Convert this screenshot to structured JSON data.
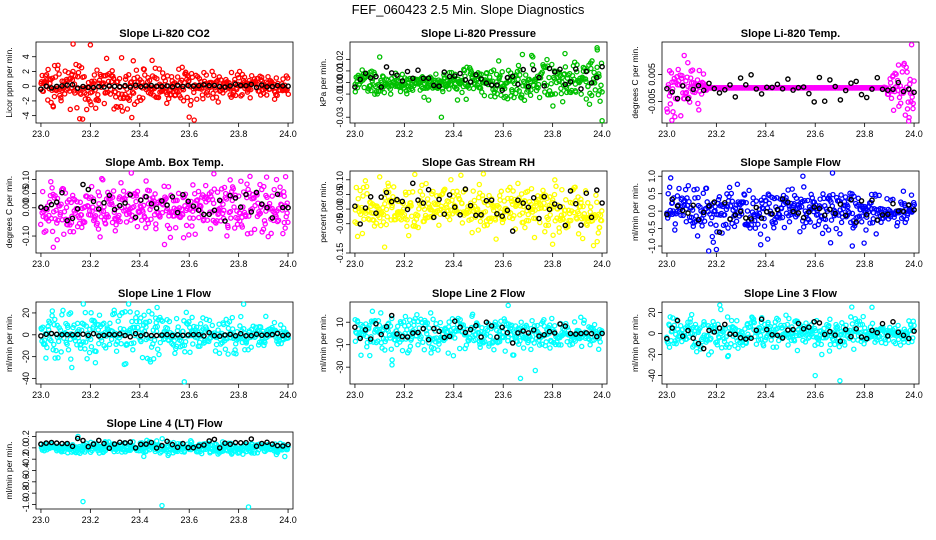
{
  "title": "FEF_060423  2.5 Min. Slope Diagnostics",
  "chart_data": [
    {
      "id": "co2",
      "type": "scatter",
      "title": "Slope Li-820 CO2",
      "ylabel": "Licor ppm per min.",
      "xlim": [
        22.98,
        24.02
      ],
      "ylim": [
        -5,
        6
      ],
      "xticks": [
        "23.0",
        "23.2",
        "23.4",
        "23.6",
        "23.8",
        "24.0"
      ],
      "yticks": [
        -4,
        -2,
        0,
        2,
        4
      ],
      "ytick_labels": [
        "-4",
        "-2",
        "0",
        "2",
        "4"
      ],
      "color": "#ff0000",
      "sd": 1.2,
      "spread": [
        [
          23.0,
          1
        ],
        [
          23.2,
          1.6
        ],
        [
          23.45,
          1.3
        ],
        [
          23.6,
          0.9
        ],
        [
          24.0,
          0.5
        ]
      ],
      "outliers": [
        [
          23.13,
          5.8
        ],
        [
          23.2,
          5.6
        ],
        [
          23.6,
          -4.2
        ],
        [
          23.62,
          -4.6
        ],
        [
          23.05,
          -2.8
        ],
        [
          23.35,
          -3.1
        ],
        [
          23.45,
          3.5
        ]
      ],
      "black_sd": 0.15,
      "black_offset": 0
    },
    {
      "id": "pressure",
      "type": "scatter",
      "title": "Slope Li-820 Pressure",
      "ylabel": "kPa per min.",
      "xlim": [
        22.98,
        24.02
      ],
      "ylim": [
        -0.035,
        0.035
      ],
      "xticks": [
        "23.0",
        "23.2",
        "23.4",
        "23.6",
        "23.8",
        "24.0"
      ],
      "yticks": [
        -0.03,
        -0.01,
        0.0,
        0.01,
        0.02
      ],
      "ytick_labels": [
        "-0.03",
        "-0.01",
        "0.00",
        "0.01",
        "0.02"
      ],
      "color": "#00c000",
      "sd": 0.008,
      "spread": [
        [
          23.0,
          0.6
        ],
        [
          23.4,
          0.7
        ],
        [
          23.7,
          1.2
        ],
        [
          24.0,
          1.3
        ]
      ],
      "outliers": [
        [
          23.35,
          -0.03
        ],
        [
          23.98,
          0.03
        ],
        [
          24.0,
          -0.033
        ],
        [
          23.1,
          0.022
        ],
        [
          23.85,
          0.025
        ]
      ],
      "black_sd": 0.006,
      "black_offset": 0.003
    },
    {
      "id": "temp",
      "type": "scatter",
      "title": "Slope Li-820 Temp.",
      "ylabel": "degrees C per min.",
      "xlim": [
        22.98,
        24.02
      ],
      "ylim": [
        -0.013,
        0.017
      ],
      "xticks": [
        "23.0",
        "23.2",
        "23.4",
        "23.6",
        "23.8",
        "24.0"
      ],
      "yticks": [
        -0.005,
        0.005
      ],
      "ytick_labels": [
        "-0.005",
        "0.005"
      ],
      "color": "#ff00ff",
      "sd": 0.004,
      "spread": [
        [
          23.0,
          1.3
        ],
        [
          23.13,
          1.1
        ],
        [
          23.17,
          0
        ],
        [
          23.87,
          0
        ],
        [
          23.93,
          1
        ],
        [
          24.0,
          1.4
        ]
      ],
      "outliers": [
        [
          23.07,
          0.012
        ],
        [
          23.02,
          -0.012
        ],
        [
          23.99,
          0.016
        ],
        [
          23.98,
          -0.011
        ]
      ],
      "black_sd": 0.003,
      "black_offset": 0
    },
    {
      "id": "boxtemp",
      "type": "scatter",
      "title": "Slope Amb. Box Temp.",
      "ylabel": "degrees C per min.",
      "xlim": [
        22.98,
        24.02
      ],
      "ylim": [
        -0.16,
        0.13
      ],
      "xticks": [
        "23.0",
        "23.2",
        "23.4",
        "23.6",
        "23.8",
        "24.0"
      ],
      "yticks": [
        -0.1,
        0.0,
        0.05,
        0.1
      ],
      "ytick_labels": [
        "-0.10",
        "0.00",
        "0.05",
        "0.10"
      ],
      "color": "#ff00ff",
      "sd": 0.045,
      "spread": [
        [
          23.0,
          1
        ],
        [
          24.0,
          1
        ]
      ],
      "outliers": [
        [
          23.7,
          0.12
        ],
        [
          23.99,
          0.11
        ],
        [
          23.05,
          -0.14
        ],
        [
          23.5,
          -0.13
        ]
      ],
      "black_sd": 0.03,
      "black_offset": 0.01
    },
    {
      "id": "rh",
      "type": "scatter",
      "title": "Slope Gas Stream RH",
      "ylabel": "percent per min.",
      "xlim": [
        22.98,
        24.02
      ],
      "ylim": [
        -0.15,
        0.13
      ],
      "xticks": [
        "23.0",
        "23.2",
        "23.4",
        "23.6",
        "23.8",
        "24.0"
      ],
      "yticks": [
        -0.15,
        -0.05,
        0.0,
        0.05,
        0.1
      ],
      "ytick_labels": [
        "-0.15",
        "-0.05",
        "0.00",
        "0.05",
        "0.10"
      ],
      "color": "#ffff00",
      "sd": 0.04,
      "spread": [
        [
          23.0,
          1
        ],
        [
          24.0,
          1
        ]
      ],
      "outliers": [
        [
          23.52,
          0.12
        ],
        [
          23.12,
          -0.13
        ],
        [
          23.8,
          -0.12
        ],
        [
          23.1,
          0.11
        ]
      ],
      "black_sd": 0.035,
      "black_offset": 0.01
    },
    {
      "id": "sample",
      "type": "scatter",
      "title": "Slope Sample Flow",
      "ylabel": "ml/min per min.",
      "xlim": [
        22.98,
        24.02
      ],
      "ylim": [
        -1.2,
        1.15
      ],
      "xticks": [
        "23.0",
        "23.2",
        "23.4",
        "23.6",
        "23.8",
        "24.0"
      ],
      "yticks": [
        -1.0,
        -0.5,
        0.0,
        0.5,
        1.0
      ],
      "ytick_labels": [
        "-1.0",
        "-0.5",
        "0.0",
        "0.5",
        "1.0"
      ],
      "color": "#0000ff",
      "sd": 0.35,
      "spread": [
        [
          23.0,
          1
        ],
        [
          23.2,
          1.1
        ],
        [
          24.0,
          0.6
        ]
      ],
      "outliers": [
        [
          23.2,
          -1.1
        ],
        [
          23.55,
          1.0
        ],
        [
          23.67,
          1.12
        ],
        [
          23.75,
          -1.0
        ]
      ],
      "black_sd": 0.25,
      "black_offset": 0
    },
    {
      "id": "line1",
      "type": "scatter",
      "title": "Slope Line 1 Flow",
      "ylabel": "ml/min per min.",
      "xlim": [
        22.98,
        24.02
      ],
      "ylim": [
        -45,
        30
      ],
      "xticks": [
        "23.0",
        "23.2",
        "23.4",
        "23.6",
        "23.8",
        "24.0"
      ],
      "yticks": [
        -40,
        -20,
        0,
        20
      ],
      "ytick_labels": [
        "-40",
        "-20",
        "0",
        "20"
      ],
      "color": "#00ffff",
      "sd": 10,
      "spread": [
        [
          23.0,
          1
        ],
        [
          23.4,
          1.1
        ],
        [
          24.0,
          0.5
        ]
      ],
      "outliers": [
        [
          23.58,
          -43
        ],
        [
          23.82,
          28
        ],
        [
          23.47,
          25
        ],
        [
          23.12,
          20
        ]
      ],
      "black_sd": 0.8,
      "black_offset": 0
    },
    {
      "id": "line2",
      "type": "scatter",
      "title": "Slope Line 2 Flow",
      "ylabel": "ml/min per min.",
      "xlim": [
        22.98,
        24.02
      ],
      "ylim": [
        -45,
        28
      ],
      "xticks": [
        "23.0",
        "23.2",
        "23.4",
        "23.6",
        "23.8",
        "24.0"
      ],
      "yticks": [
        -30,
        -10,
        10
      ],
      "ytick_labels": [
        "-30",
        "-10",
        "10"
      ],
      "color": "#00ffff",
      "sd": 9,
      "spread": [
        [
          23.0,
          1
        ],
        [
          23.5,
          0.9
        ],
        [
          24.0,
          0.6
        ]
      ],
      "outliers": [
        [
          23.67,
          -40
        ],
        [
          23.73,
          -33
        ],
        [
          23.62,
          25
        ],
        [
          23.15,
          -28
        ]
      ],
      "black_sd": 5,
      "black_offset": 0
    },
    {
      "id": "line3",
      "type": "scatter",
      "title": "Slope Line 3 Flow",
      "ylabel": "ml/min per min.",
      "xlim": [
        22.98,
        24.02
      ],
      "ylim": [
        -48,
        30
      ],
      "xticks": [
        "23.0",
        "23.2",
        "23.4",
        "23.6",
        "23.8",
        "24.0"
      ],
      "yticks": [
        -40,
        -20,
        0,
        20
      ],
      "ytick_labels": [
        "-40",
        "-20",
        "0",
        "20"
      ],
      "color": "#00ffff",
      "sd": 9,
      "spread": [
        [
          23.0,
          1
        ],
        [
          23.5,
          0.9
        ],
        [
          24.0,
          0.6
        ]
      ],
      "outliers": [
        [
          23.6,
          -40
        ],
        [
          23.7,
          -45
        ],
        [
          23.83,
          25
        ],
        [
          23.1,
          18
        ]
      ],
      "black_sd": 5,
      "black_offset": 0
    },
    {
      "id": "line4",
      "type": "scatter",
      "title": "Slope Line 4 (LT) Flow",
      "ylabel": "ml/min per min.",
      "xlim": [
        22.98,
        24.02
      ],
      "ylim": [
        -1.08,
        0.28
      ],
      "xticks": [
        "23.0",
        "23.2",
        "23.4",
        "23.6",
        "23.8",
        "24.0"
      ],
      "yticks": [
        -1.0,
        -0.8,
        -0.6,
        -0.4,
        -0.2,
        0.0,
        0.2
      ],
      "ytick_labels": [
        "-1.0",
        "-0.8",
        "-0.6",
        "-0.4",
        "-0.2",
        "0.0",
        "0.2"
      ],
      "color": "#00ffff",
      "sd": 0.05,
      "spread": [
        [
          23.0,
          1
        ],
        [
          24.0,
          1
        ]
      ],
      "outliers": [
        [
          23.17,
          -0.95
        ],
        [
          23.49,
          -1.02
        ],
        [
          23.84,
          -1.05
        ],
        [
          23.15,
          0.2
        ]
      ],
      "black_sd": 0.04,
      "black_offset": 0.07
    }
  ]
}
